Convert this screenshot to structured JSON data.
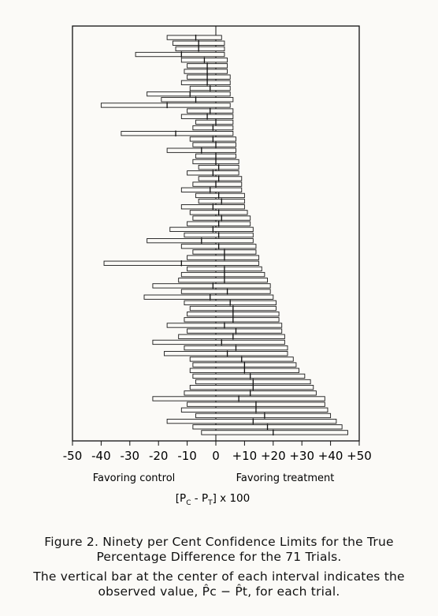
{
  "figure": {
    "caption_title_line1": "Figure 2. Ninety per Cent Confidence Limits for the True",
    "caption_title_line2": "Percentage Difference for the 71 Trials.",
    "caption_body_line1": "The vertical bar at the center of each interval indicates the",
    "caption_body_line2": "observed value, P̂c − P̂t, for each trial."
  },
  "chart_data": {
    "type": "interval",
    "title": "",
    "xlabel": "[Pc - PT] x 100",
    "xlabel_parts": {
      "open": "[P",
      "sub1": "C",
      "mid": " - P",
      "sub2": "T",
      "close": "] x 100"
    },
    "xlim": [
      -50,
      50
    ],
    "xticks": [
      -50,
      -40,
      -30,
      -20,
      -10,
      0,
      10,
      20,
      30,
      40,
      50
    ],
    "xtick_labels": [
      "-50",
      "-40",
      "-30",
      "-20",
      "-10",
      "0",
      "+10",
      "+20",
      "+30",
      "+40",
      "+50"
    ],
    "region_labels": {
      "left": "Favoring control",
      "right": "Favoring treatment"
    },
    "n_trials": 71,
    "grid": false,
    "intervals": [
      {
        "low": -17,
        "high": 2,
        "est": -7
      },
      {
        "low": -15,
        "high": 3,
        "est": -6
      },
      {
        "low": -14,
        "high": 3,
        "est": -6
      },
      {
        "low": -28,
        "high": 3,
        "est": -12
      },
      {
        "low": -12,
        "high": 4,
        "est": -4
      },
      {
        "low": -10,
        "high": 4,
        "est": -3
      },
      {
        "low": -11,
        "high": 4,
        "est": -3
      },
      {
        "low": -10,
        "high": 5,
        "est": -3
      },
      {
        "low": -12,
        "high": 5,
        "est": -3
      },
      {
        "low": -9,
        "high": 5,
        "est": -2
      },
      {
        "low": -24,
        "high": 5,
        "est": -9
      },
      {
        "low": -19,
        "high": 6,
        "est": -7
      },
      {
        "low": -40,
        "high": 5,
        "est": -17
      },
      {
        "low": -10,
        "high": 6,
        "est": -2
      },
      {
        "low": -12,
        "high": 6,
        "est": -3
      },
      {
        "low": -7,
        "high": 6,
        "est": 0
      },
      {
        "low": -8,
        "high": 6,
        "est": -1
      },
      {
        "low": -33,
        "high": 6,
        "est": -14
      },
      {
        "low": -9,
        "high": 7,
        "est": -1
      },
      {
        "low": -8,
        "high": 7,
        "est": 0
      },
      {
        "low": -17,
        "high": 7,
        "est": -5
      },
      {
        "low": -7,
        "high": 7,
        "est": 0
      },
      {
        "low": -8,
        "high": 8,
        "est": 0
      },
      {
        "low": -6,
        "high": 8,
        "est": 1
      },
      {
        "low": -10,
        "high": 8,
        "est": -1
      },
      {
        "low": -6,
        "high": 9,
        "est": 1
      },
      {
        "low": -8,
        "high": 9,
        "est": 0
      },
      {
        "low": -12,
        "high": 9,
        "est": -2
      },
      {
        "low": -7,
        "high": 10,
        "est": 1
      },
      {
        "low": -6,
        "high": 10,
        "est": 2
      },
      {
        "low": -12,
        "high": 10,
        "est": -1
      },
      {
        "low": -9,
        "high": 11,
        "est": 1
      },
      {
        "low": -8,
        "high": 12,
        "est": 2
      },
      {
        "low": -10,
        "high": 12,
        "est": 1
      },
      {
        "low": -16,
        "high": 13,
        "est": -1
      },
      {
        "low": -11,
        "high": 13,
        "est": 1
      },
      {
        "low": -24,
        "high": 13,
        "est": -5
      },
      {
        "low": -12,
        "high": 14,
        "est": 1
      },
      {
        "low": -8,
        "high": 14,
        "est": 3
      },
      {
        "low": -10,
        "high": 15,
        "est": 3
      },
      {
        "low": -39,
        "high": 15,
        "est": -12
      },
      {
        "low": -10,
        "high": 16,
        "est": 3
      },
      {
        "low": -12,
        "high": 17,
        "est": 3
      },
      {
        "low": -13,
        "high": 18,
        "est": 3
      },
      {
        "low": -22,
        "high": 19,
        "est": -1
      },
      {
        "low": -12,
        "high": 19,
        "est": 4
      },
      {
        "low": -25,
        "high": 20,
        "est": -2
      },
      {
        "low": -11,
        "high": 21,
        "est": 5
      },
      {
        "low": -9,
        "high": 21,
        "est": 6
      },
      {
        "low": -10,
        "high": 22,
        "est": 6
      },
      {
        "low": -11,
        "high": 22,
        "est": 6
      },
      {
        "low": -17,
        "high": 23,
        "est": 3
      },
      {
        "low": -10,
        "high": 23,
        "est": 7
      },
      {
        "low": -13,
        "high": 24,
        "est": 6
      },
      {
        "low": -22,
        "high": 24,
        "est": 2
      },
      {
        "low": -11,
        "high": 25,
        "est": 7
      },
      {
        "low": -18,
        "high": 25,
        "est": 4
      },
      {
        "low": -9,
        "high": 27,
        "est": 9
      },
      {
        "low": -8,
        "high": 28,
        "est": 10
      },
      {
        "low": -9,
        "high": 29,
        "est": 10
      },
      {
        "low": -8,
        "high": 31,
        "est": 12
      },
      {
        "low": -7,
        "high": 33,
        "est": 13
      },
      {
        "low": -9,
        "high": 34,
        "est": 13
      },
      {
        "low": -11,
        "high": 35,
        "est": 12
      },
      {
        "low": -22,
        "high": 38,
        "est": 8
      },
      {
        "low": -10,
        "high": 38,
        "est": 14
      },
      {
        "low": -12,
        "high": 39,
        "est": 14
      },
      {
        "low": -7,
        "high": 40,
        "est": 17
      },
      {
        "low": -17,
        "high": 42,
        "est": 13
      },
      {
        "low": -8,
        "high": 44,
        "est": 18
      },
      {
        "low": -5,
        "high": 46,
        "est": 20
      }
    ]
  }
}
